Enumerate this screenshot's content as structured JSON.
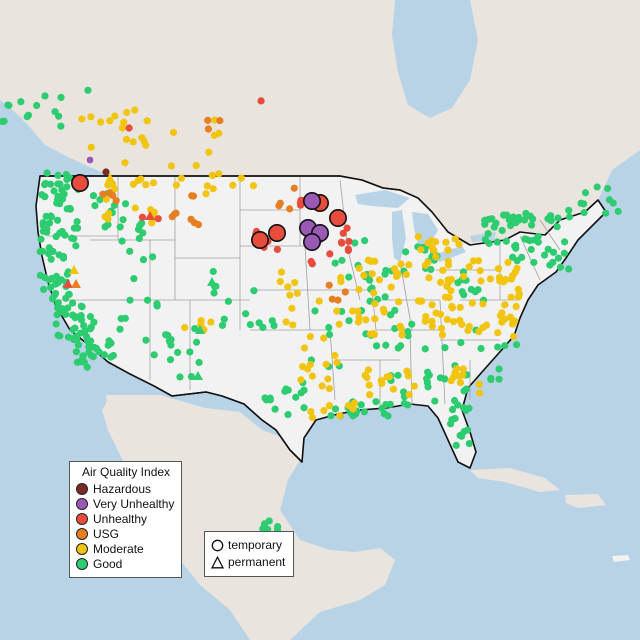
{
  "colors": {
    "ocean": "#b9d3e6",
    "land_us": "#f2f2f2",
    "land_other": "#e7e2dc",
    "state_line": "#9b9b9b",
    "border_line": "#111111"
  },
  "legend": {
    "title": "Air Quality Index",
    "categories": [
      {
        "key": "hazardous",
        "label": "Hazardous",
        "color": "#7b2a26"
      },
      {
        "key": "very_unhealthy",
        "label": "Very Unhealthy",
        "color": "#9b59b6"
      },
      {
        "key": "unhealthy",
        "label": "Unhealthy",
        "color": "#e74c3c"
      },
      {
        "key": "usg",
        "label": "USG",
        "color": "#e67e22"
      },
      {
        "key": "moderate",
        "label": "Moderate",
        "color": "#f1c40f"
      },
      {
        "key": "good",
        "label": "Good",
        "color": "#2ecc71"
      }
    ],
    "monitor_types": [
      {
        "key": "temporary",
        "label": "temporary",
        "icon": "circle-icon"
      },
      {
        "key": "permanent",
        "label": "permanent",
        "icon": "triangle-icon"
      }
    ]
  }
}
